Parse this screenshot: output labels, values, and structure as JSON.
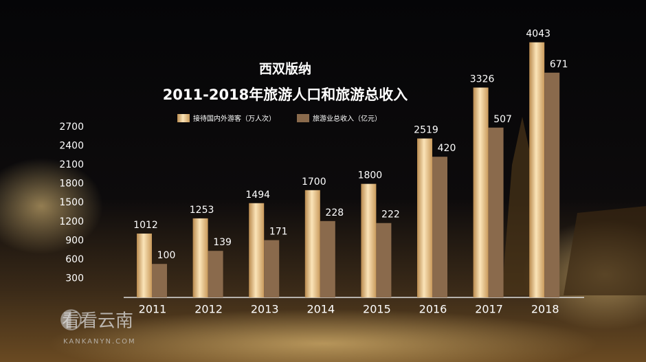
{
  "chart_data": {
    "type": "bar",
    "title": "西双版纳",
    "subtitle": "2011-2018年旅游人口和旅游总收入",
    "categories": [
      "2011",
      "2012",
      "2013",
      "2014",
      "2015",
      "2016",
      "2017",
      "2018"
    ],
    "series": [
      {
        "name": "接待国内外游客（万人次）",
        "color": "#e8c48a",
        "values": [
          1012,
          1253,
          1494,
          1700,
          1800,
          2519,
          3326,
          4043
        ]
      },
      {
        "name": "旅游业总收入（亿元）",
        "color": "#8a6a4c",
        "axis": "y2",
        "values": [
          100,
          139,
          171,
          228,
          222,
          420,
          507,
          671
        ]
      }
    ],
    "ylim": [
      0,
      4300
    ],
    "yticks": [
      300,
      600,
      900,
      1200,
      1500,
      1800,
      2100,
      2400,
      2700
    ],
    "y2lim": [
      0,
      810
    ],
    "grid": false
  },
  "watermark": {
    "text": "看看云南",
    "url": "KANKANYN.COM"
  }
}
